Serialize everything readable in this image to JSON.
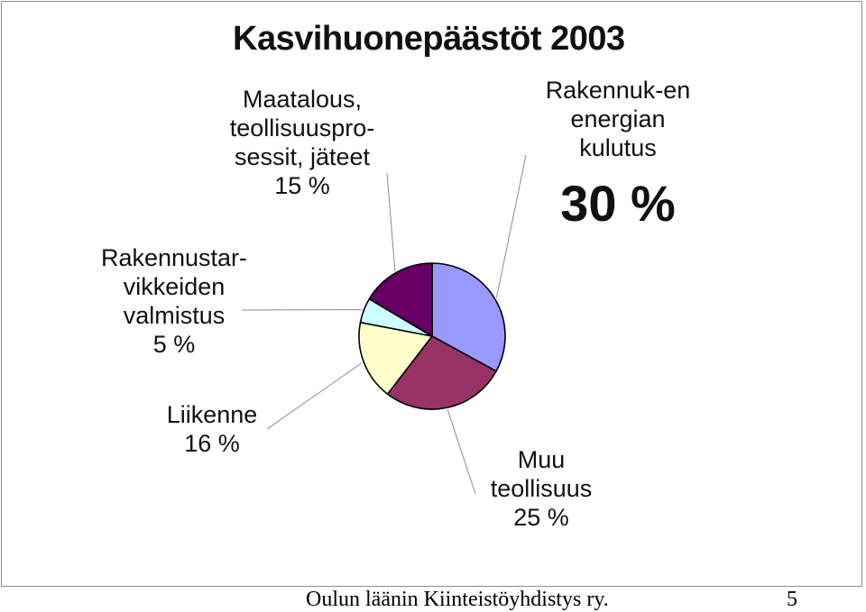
{
  "chart_data": {
    "type": "pie",
    "title": "Kasvihuonepäästöt 2003",
    "slices": [
      {
        "label_lines": [
          "Rakennuk-en",
          "energian",
          "kulutus"
        ],
        "value_label": "30 %",
        "value": 30,
        "color": "#9999ff"
      },
      {
        "label_lines": [
          "Muu",
          "teollisuus"
        ],
        "value_label": "25 %",
        "value": 25,
        "color": "#993366"
      },
      {
        "label_lines": [
          "Liikenne"
        ],
        "value_label": "16 %",
        "value": 16,
        "color": "#ffffcc"
      },
      {
        "label_lines": [
          "Rakennustar-",
          "vikkeiden",
          "valmistus"
        ],
        "value_label": "5 %",
        "value": 5,
        "color": "#ccffff"
      },
      {
        "label_lines": [
          "Maatalous,",
          "teollisuuspro-",
          "sessit, jäteet"
        ],
        "value_label": "15 %",
        "value": 15,
        "color": "#660066"
      }
    ],
    "start_angle_deg": 0,
    "direction": "clockwise",
    "legend": "none"
  },
  "footer": {
    "organization": "Oulun läänin Kiinteistöyhdistys ry.",
    "page_number": "5"
  }
}
